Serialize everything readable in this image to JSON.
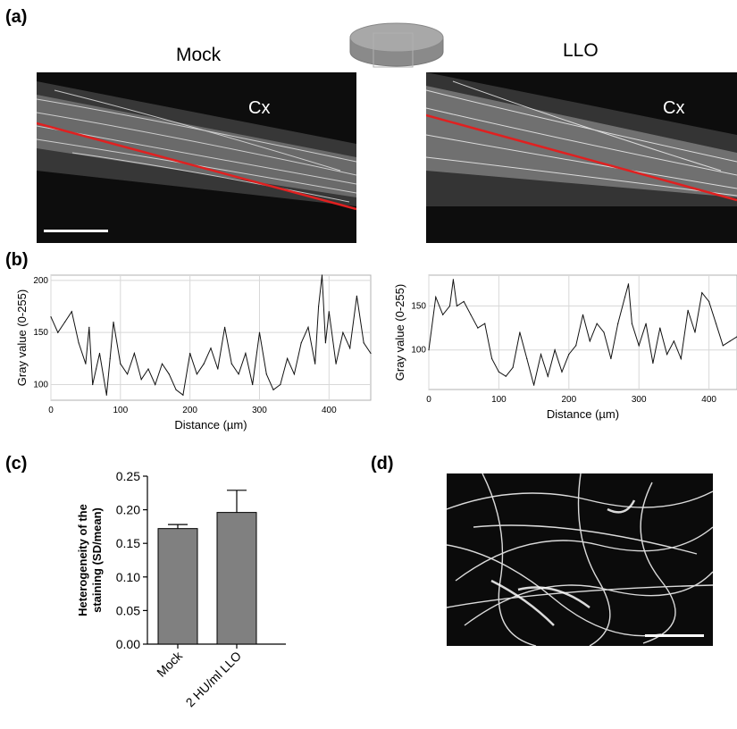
{
  "panels": {
    "a": {
      "label": "(a)",
      "left_title": "Mock",
      "right_title": "LLO",
      "region_label": "Cx"
    },
    "b": {
      "label": "(b)"
    },
    "c": {
      "label": "(c)"
    },
    "d": {
      "label": "(d)"
    }
  },
  "chart_data": [
    {
      "type": "line",
      "panel": "b-left",
      "xlabel": "Distance (µm)",
      "ylabel": "Gray value (0-255)",
      "xlim": [
        0,
        460
      ],
      "ylim": [
        85,
        205
      ],
      "xticks": [
        0,
        100,
        200,
        300,
        400
      ],
      "yticks": [
        100,
        150,
        200
      ],
      "grid": true,
      "x": [
        0,
        10,
        20,
        30,
        40,
        50,
        55,
        60,
        65,
        70,
        80,
        85,
        90,
        100,
        110,
        120,
        130,
        140,
        150,
        160,
        170,
        180,
        190,
        200,
        210,
        220,
        230,
        240,
        250,
        260,
        270,
        280,
        290,
        300,
        310,
        320,
        330,
        340,
        350,
        360,
        370,
        380,
        385,
        390,
        395,
        400,
        410,
        420,
        430,
        440,
        450,
        460
      ],
      "y": [
        165,
        150,
        160,
        170,
        140,
        120,
        155,
        100,
        115,
        130,
        90,
        125,
        160,
        120,
        110,
        130,
        105,
        115,
        100,
        120,
        110,
        95,
        90,
        130,
        110,
        120,
        135,
        115,
        155,
        120,
        110,
        130,
        100,
        150,
        110,
        95,
        100,
        125,
        110,
        140,
        155,
        120,
        175,
        205,
        140,
        170,
        120,
        150,
        135,
        185,
        140,
        130
      ]
    },
    {
      "type": "line",
      "panel": "b-right",
      "xlabel": "Distance (µm)",
      "ylabel": "Gray value (0-255)",
      "xlim": [
        0,
        440
      ],
      "ylim": [
        55,
        185
      ],
      "xticks": [
        0,
        100,
        200,
        300,
        400
      ],
      "yticks": [
        100,
        150
      ],
      "grid": true,
      "x": [
        0,
        10,
        20,
        30,
        35,
        40,
        50,
        60,
        70,
        80,
        90,
        100,
        110,
        120,
        130,
        140,
        150,
        160,
        170,
        180,
        190,
        200,
        210,
        220,
        230,
        240,
        250,
        260,
        270,
        280,
        285,
        290,
        300,
        310,
        320,
        330,
        340,
        350,
        360,
        370,
        380,
        390,
        400,
        410,
        420,
        430,
        440
      ],
      "y": [
        100,
        160,
        140,
        150,
        180,
        150,
        155,
        140,
        125,
        130,
        90,
        75,
        70,
        80,
        120,
        90,
        60,
        95,
        70,
        100,
        75,
        95,
        105,
        140,
        110,
        130,
        120,
        90,
        130,
        160,
        175,
        130,
        105,
        130,
        85,
        125,
        95,
        110,
        90,
        145,
        120,
        165,
        155,
        130,
        105,
        110,
        115
      ]
    },
    {
      "type": "bar",
      "panel": "c",
      "ylabel": "Heterogeneity of the staining (SD/mean)",
      "categories": [
        "Mock",
        "2 HU/ml LLO"
      ],
      "values": [
        0.172,
        0.196
      ],
      "errors": [
        0.006,
        0.033
      ],
      "ylim": [
        0,
        0.25
      ],
      "yticks": [
        "0.00",
        "0.05",
        "0.10",
        "0.15",
        "0.20",
        "0.25"
      ],
      "bar_color": "#808080"
    }
  ]
}
